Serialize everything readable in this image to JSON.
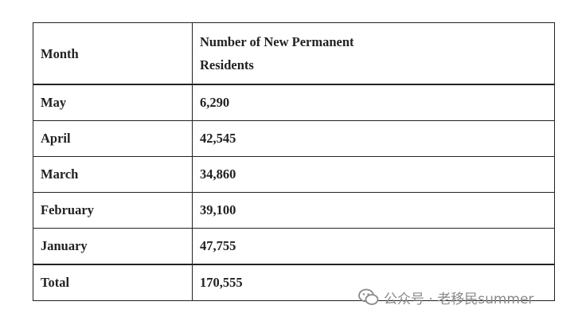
{
  "table": {
    "header": [
      "Month",
      "Number of New Permanent Residents"
    ],
    "rows": [
      [
        "May",
        "6,290"
      ],
      [
        "April",
        "42,545"
      ],
      [
        "March",
        "34,860"
      ],
      [
        "February",
        "39,100"
      ],
      [
        "January",
        "47,755"
      ]
    ],
    "total": [
      "Total",
      "170,555"
    ]
  },
  "watermark": "公众号 · 老移民summer"
}
